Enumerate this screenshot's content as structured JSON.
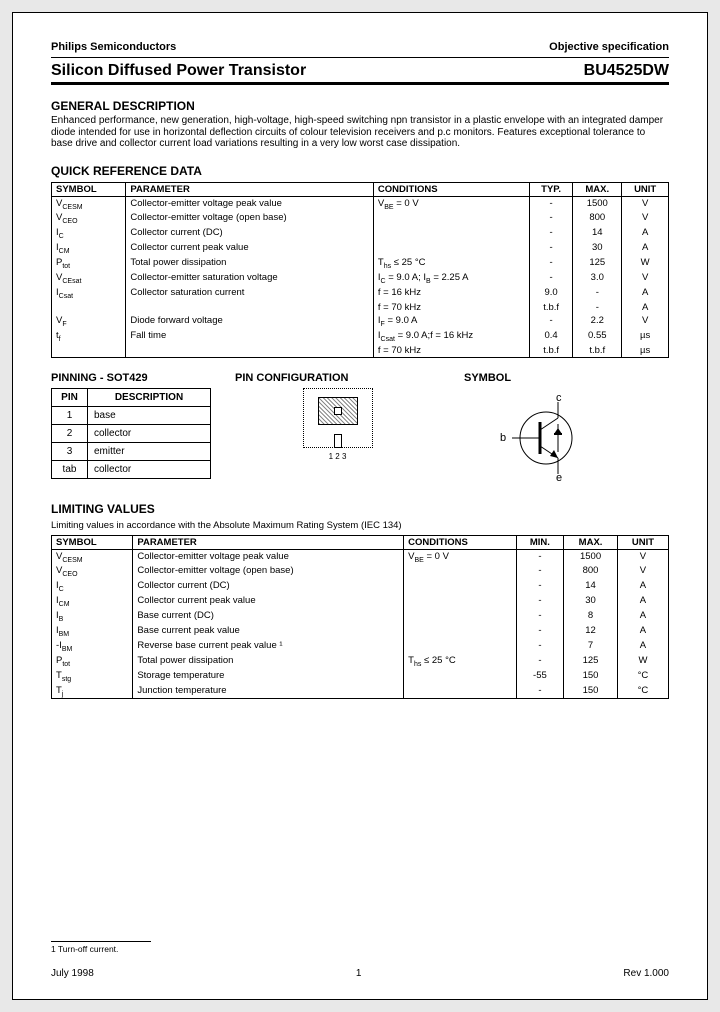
{
  "header": {
    "company": "Philips Semiconductors",
    "spec": "Objective specification"
  },
  "title": {
    "left": "Silicon Diffused Power Transistor",
    "right": "BU4525DW"
  },
  "general": {
    "heading": "GENERAL DESCRIPTION",
    "text": "Enhanced performance, new generation, high-voltage, high-speed switching npn transistor in a plastic envelope with an integrated damper diode intended for use in horizontal deflection circuits of colour television receivers and p.c monitors. Features exceptional tolerance to base drive and collector current load variations resulting in a very low worst case dissipation."
  },
  "qrd": {
    "heading": "QUICK REFERENCE DATA",
    "cols": [
      "SYMBOL",
      "PARAMETER",
      "CONDITIONS",
      "TYP.",
      "MAX.",
      "UNIT"
    ],
    "rows": [
      {
        "s": "V",
        "sub": "CESM",
        "p": "Collector-emitter voltage peak value",
        "c": "V",
        "csub": "BE",
        "c2": " = 0 V",
        "typ": "-",
        "max": "1500",
        "u": "V"
      },
      {
        "s": "V",
        "sub": "CEO",
        "p": "Collector-emitter voltage (open base)",
        "c": "",
        "typ": "-",
        "max": "800",
        "u": "V"
      },
      {
        "s": "I",
        "sub": "C",
        "p": "Collector current (DC)",
        "c": "",
        "typ": "-",
        "max": "14",
        "u": "A"
      },
      {
        "s": "I",
        "sub": "CM",
        "p": "Collector current peak value",
        "c": "",
        "typ": "-",
        "max": "30",
        "u": "A"
      },
      {
        "s": "P",
        "sub": "tot",
        "p": "Total power dissipation",
        "c": "T",
        "csub": "hs",
        "c2": " ≤ 25 °C",
        "typ": "-",
        "max": "125",
        "u": "W"
      },
      {
        "s": "V",
        "sub": "CEsat",
        "p": "Collector-emitter saturation voltage",
        "c": "I",
        "csub": "C",
        "c2": " = 9.0 A; I",
        "csub2": "B",
        "c3": " = 2.25 A",
        "typ": "-",
        "max": "3.0",
        "u": "V"
      },
      {
        "s": "I",
        "sub": "Csat",
        "p": "Collector saturation current",
        "c": "f = 16 kHz",
        "typ": "9.0",
        "max": "-",
        "u": "A"
      },
      {
        "s": "",
        "sub": "",
        "p": "",
        "c": "f = 70 kHz",
        "typ": "t.b.f",
        "max": "-",
        "u": "A"
      },
      {
        "s": "V",
        "sub": "F",
        "p": "Diode forward voltage",
        "c": "I",
        "csub": "F",
        "c2": " = 9.0 A",
        "typ": "-",
        "max": "2.2",
        "u": "V"
      },
      {
        "s": "t",
        "sub": "f",
        "p": "Fall time",
        "c": "I",
        "csub": "Csat",
        "c2": " = 9.0 A;f = 16 kHz",
        "typ": "0.4",
        "max": "0.55",
        "u": "µs"
      },
      {
        "s": "",
        "sub": "",
        "p": "",
        "c": "f = 70 kHz",
        "typ": "t.b.f",
        "max": "t.b.f",
        "u": "µs"
      }
    ]
  },
  "pinning": {
    "heading": "PINNING - SOT429",
    "cols": [
      "PIN",
      "DESCRIPTION"
    ],
    "rows": [
      {
        "pin": "1",
        "desc": "base"
      },
      {
        "pin": "2",
        "desc": "collector"
      },
      {
        "pin": "3",
        "desc": "emitter"
      },
      {
        "pin": "tab",
        "desc": "collector"
      }
    ]
  },
  "pinconf": {
    "heading": "PIN CONFIGURATION",
    "label": "1   2   3"
  },
  "symbol": {
    "heading": "SYMBOL",
    "c": "c",
    "b": "b",
    "e": "e"
  },
  "limiting": {
    "heading": "LIMITING VALUES",
    "note": "Limiting values in accordance with the Absolute Maximum Rating System (IEC 134)",
    "cols": [
      "SYMBOL",
      "PARAMETER",
      "CONDITIONS",
      "MIN.",
      "MAX.",
      "UNIT"
    ],
    "rows": [
      {
        "s": "V",
        "sub": "CESM",
        "p": "Collector-emitter voltage peak value",
        "c": "V",
        "csub": "BE",
        "c2": " = 0 V",
        "min": "-",
        "max": "1500",
        "u": "V"
      },
      {
        "s": "V",
        "sub": "CEO",
        "p": "Collector-emitter voltage (open base)",
        "c": "",
        "min": "-",
        "max": "800",
        "u": "V"
      },
      {
        "s": "I",
        "sub": "C",
        "p": "Collector current (DC)",
        "c": "",
        "min": "-",
        "max": "14",
        "u": "A"
      },
      {
        "s": "I",
        "sub": "CM",
        "p": "Collector current peak value",
        "c": "",
        "min": "-",
        "max": "30",
        "u": "A"
      },
      {
        "s": "I",
        "sub": "B",
        "p": "Base current (DC)",
        "c": "",
        "min": "-",
        "max": "8",
        "u": "A"
      },
      {
        "s": "I",
        "sub": "BM",
        "p": "Base current peak value",
        "c": "",
        "min": "-",
        "max": "12",
        "u": "A"
      },
      {
        "s": "-I",
        "sub": "BM",
        "p": "Reverse base current peak value ¹",
        "c": "",
        "min": "-",
        "max": "7",
        "u": "A"
      },
      {
        "s": "P",
        "sub": "tot",
        "p": "Total power dissipation",
        "c": "T",
        "csub": "hs",
        "c2": " ≤ 25 °C",
        "min": "-",
        "max": "125",
        "u": "W"
      },
      {
        "s": "T",
        "sub": "stg",
        "p": "Storage temperature",
        "c": "",
        "min": "-55",
        "max": "150",
        "u": "°C"
      },
      {
        "s": "T",
        "sub": "j",
        "p": "Junction temperature",
        "c": "",
        "min": "-",
        "max": "150",
        "u": "°C"
      }
    ]
  },
  "footnote": "1 Turn-off current.",
  "footer": {
    "date": "July 1998",
    "page": "1",
    "rev": "Rev 1.000"
  }
}
